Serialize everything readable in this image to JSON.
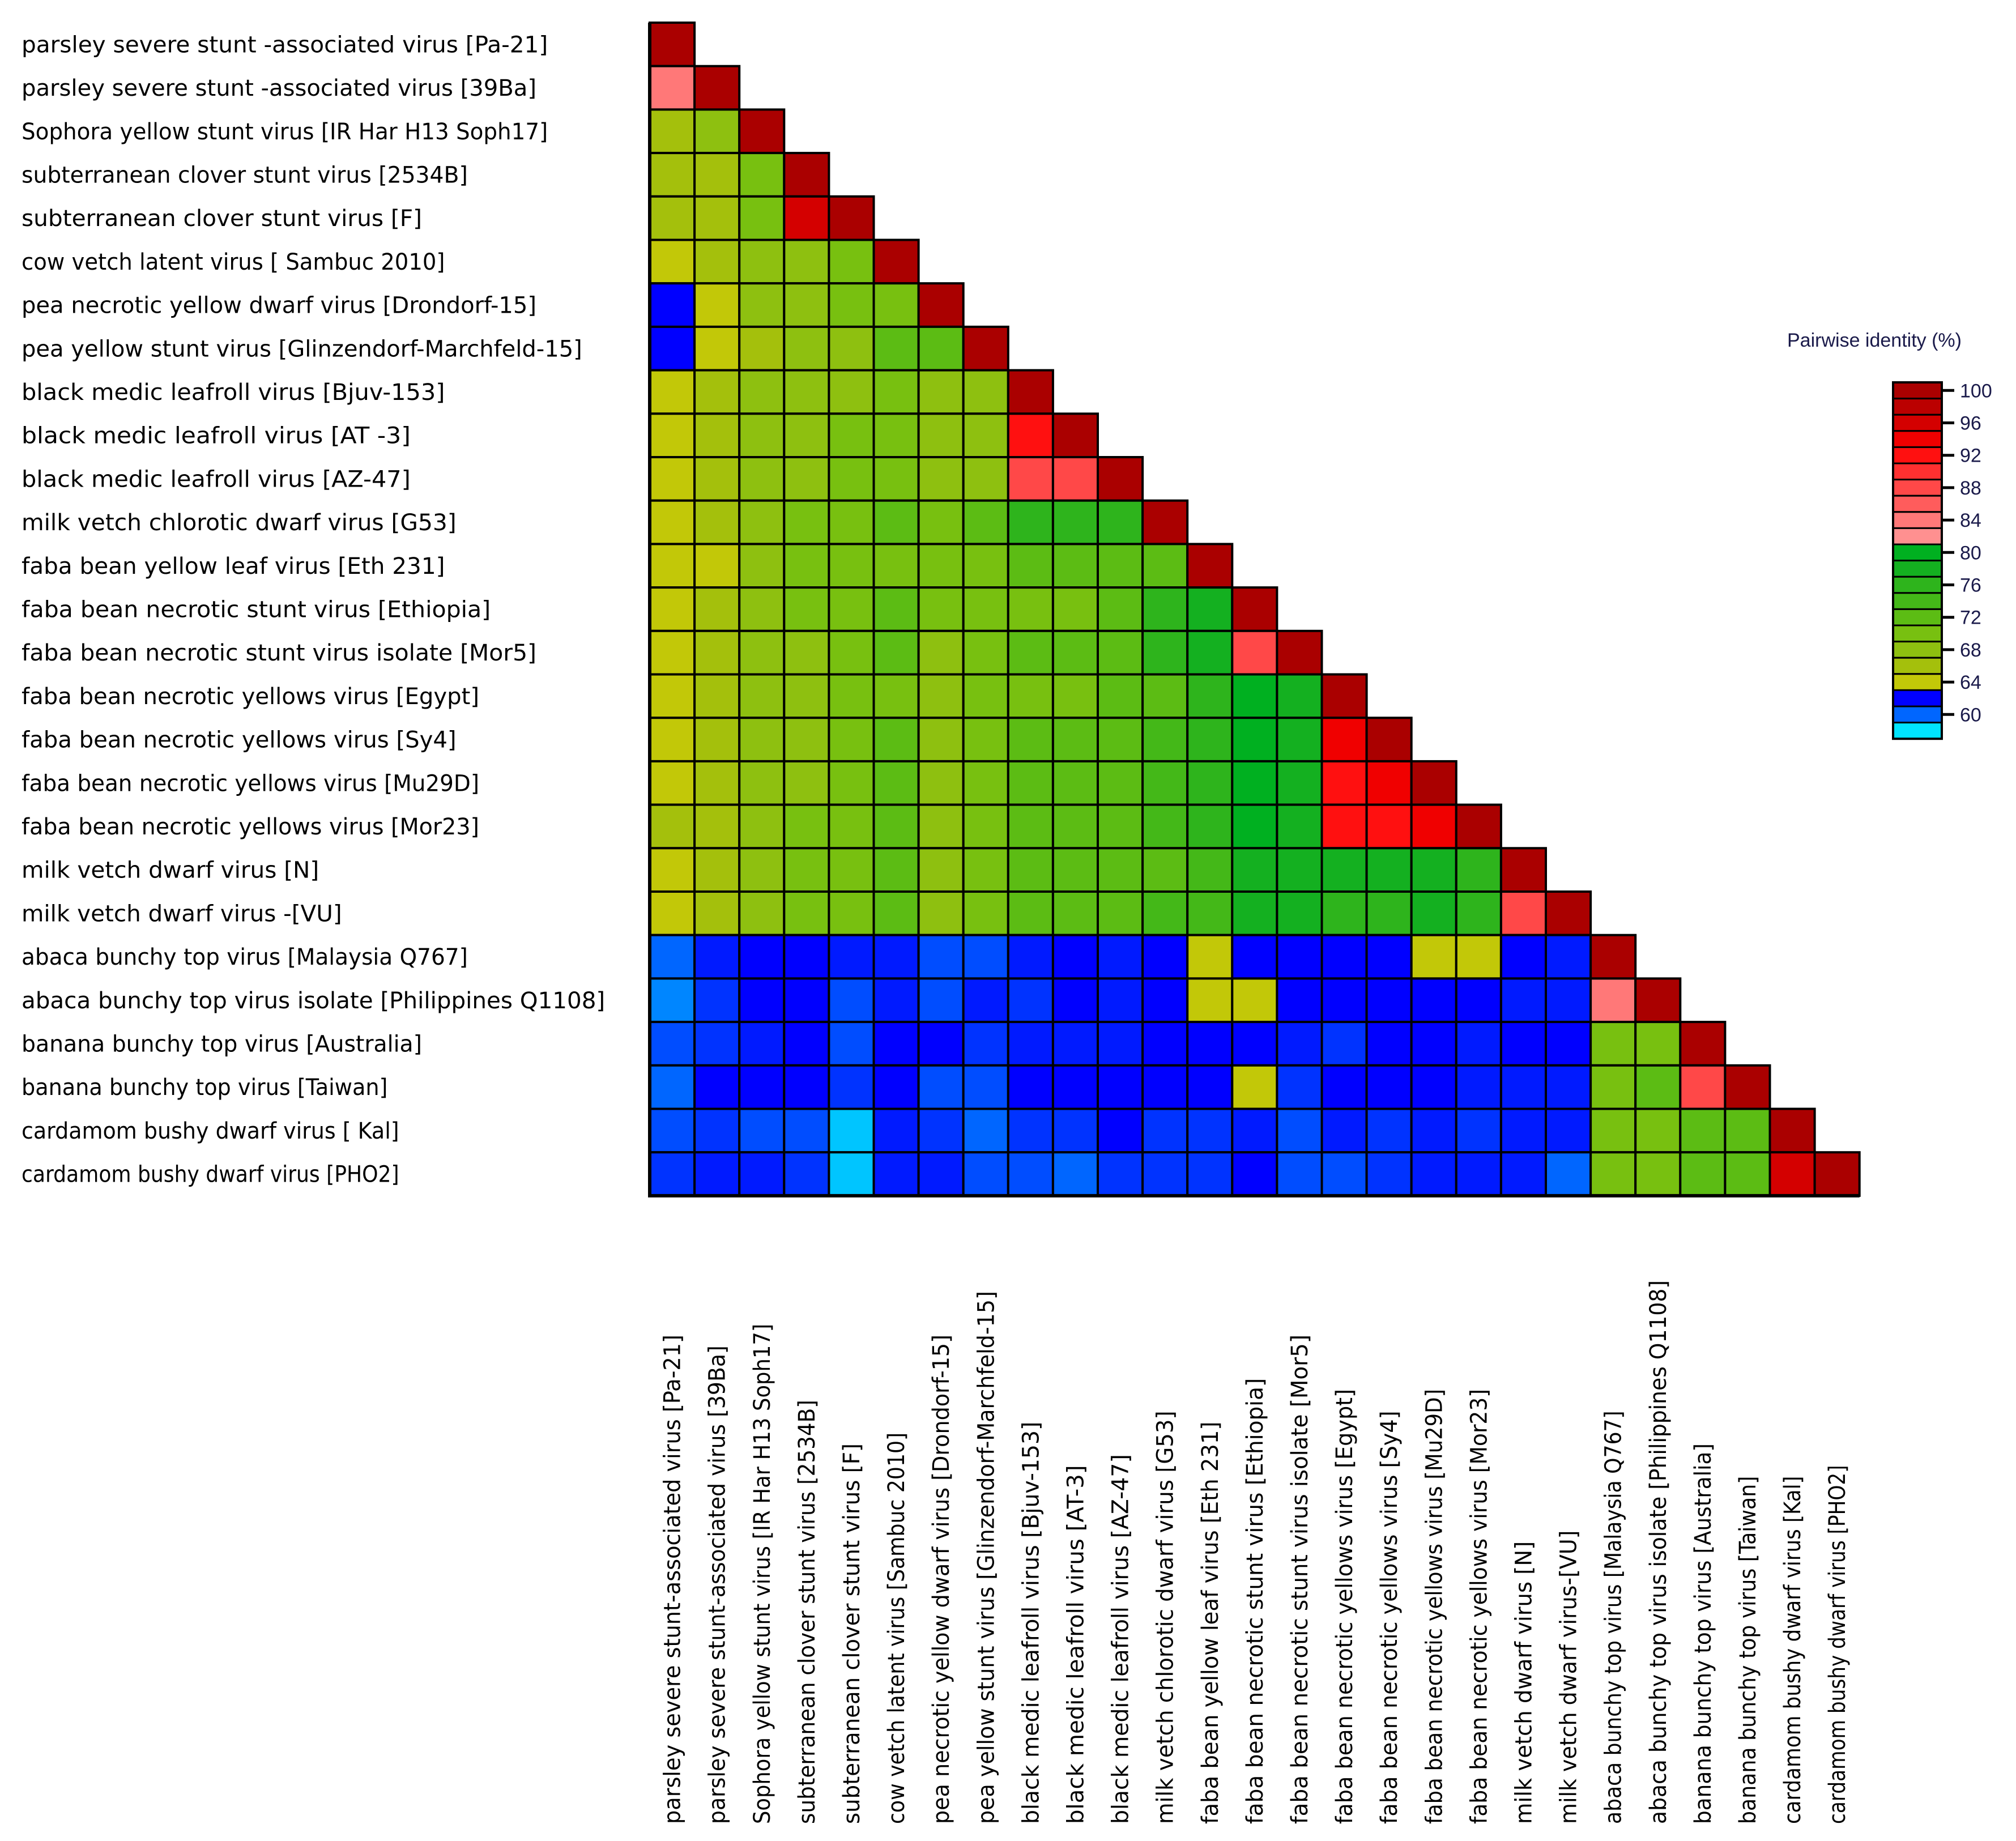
{
  "chart_data": {
    "type": "heatmap",
    "title": "",
    "subtitle": "",
    "xlabel": "",
    "ylabel": "",
    "matrix_shape": "lower-triangle",
    "row_labels": [
      "parsley severe stunt -associated virus [Pa-21]",
      "parsley severe stunt -associated virus [39Ba]",
      "Sophora yellow stunt virus [IR Har H13 Soph17]",
      "subterranean clover stunt virus [2534B]",
      "subterranean clover stunt virus [F]",
      "cow vetch latent virus [ Sambuc 2010]",
      "pea necrotic yellow dwarf virus [Drondorf-15]",
      "pea yellow stunt virus [Glinzendorf-Marchfeld-15]",
      "black medic leafroll virus [Bjuv-153]",
      "black medic leafroll virus [AT -3]",
      "black medic leafroll virus [AZ-47]",
      "milk vetch chlorotic dwarf virus [G53]",
      "faba bean yellow leaf virus [Eth 231]",
      "faba bean necrotic stunt virus [Ethiopia]",
      "faba bean necrotic stunt virus isolate [Mor5]",
      "faba bean necrotic yellows virus [Egypt]",
      "faba bean necrotic yellows virus [Sy4]",
      "faba bean necrotic yellows virus [Mu29D]",
      "faba bean necrotic yellows virus [Mor23]",
      "milk vetch dwarf virus [N]",
      "milk vetch dwarf virus -[VU]",
      "abaca bunchy top virus  [Malaysia Q767]",
      "abaca bunchy top virus isolate  [Philippines Q1108]",
      "banana bunchy top virus [Australia]",
      "banana bunchy top virus [Taiwan]",
      "cardamom bushy dwarf virus [ Kal]",
      "cardamom bushy dwarf virus [PHO2]"
    ],
    "col_labels": [
      "parsley severe stunt-associated virus [Pa-21]",
      "parsley severe stunt-associated virus [39Ba]",
      "Sophora yellow stunt virus [IR Har H13 Soph17]",
      "subterranean clover stunt virus [2534B]",
      "subterranean clover stunt virus [F]",
      "cow vetch latent virus [Sambuc 2010]",
      "pea necrotic yellow dwarf virus [Drondorf-15]",
      "pea yellow stunt virus [Glinzendorf-Marchfeld-15]",
      "black medic leafroll virus [Bjuv-153]",
      "black medic leafroll virus [AT-3]",
      "black medic leafroll virus [AZ-47]",
      "milk vetch chlorotic dwarf virus [G53]",
      "faba bean yellow leaf virus [Eth 231]",
      "faba bean necrotic stunt virus [Ethiopia]",
      "faba bean necrotic stunt virus isolate [Mor5]",
      "faba bean necrotic yellows virus [Egypt]",
      "faba bean necrotic yellows virus [Sy4]",
      "faba bean necrotic yellows virus [Mu29D]",
      "faba bean necrotic yellows virus [Mor23]",
      "milk vetch dwarf virus [N]",
      "milk vetch dwarf virus-[VU]",
      "abaca bunchy top virus [Malaysia Q767]",
      "abaca bunchy top virus isolate [Philippines Q1108]",
      "banana bunchy top virus [Australia]",
      "banana bunchy top virus [Taiwan]",
      "cardamom bushy dwarf virus [Kal]",
      "cardamom bushy dwarf virus [PHO2]"
    ],
    "values": [
      [
        100
      ],
      [
        83,
        100
      ],
      [
        65,
        67,
        100
      ],
      [
        65,
        66,
        69,
        100
      ],
      [
        65,
        66,
        70,
        96,
        100
      ],
      [
        64,
        66,
        67,
        68,
        69,
        100
      ],
      [
        62,
        64,
        67,
        68,
        69,
        70,
        100
      ],
      [
        62,
        64,
        66,
        67,
        67,
        71,
        72,
        100
      ],
      [
        64,
        65,
        67,
        68,
        68,
        70,
        68,
        68,
        100
      ],
      [
        64,
        65,
        67,
        68,
        69,
        70,
        67,
        68,
        92,
        100
      ],
      [
        64,
        65,
        67,
        68,
        69,
        70,
        68,
        68,
        88,
        87,
        100
      ],
      [
        64,
        66,
        68,
        69,
        70,
        71,
        69,
        71,
        75,
        75,
        75,
        100
      ],
      [
        64,
        64,
        67,
        69,
        70,
        70,
        69,
        70,
        71,
        71,
        71,
        72,
        100
      ],
      [
        64,
        65,
        68,
        69,
        69,
        71,
        69,
        70,
        70,
        70,
        72,
        75,
        77,
        100
      ],
      [
        64,
        65,
        68,
        68,
        69,
        71,
        68,
        70,
        71,
        71,
        71,
        75,
        77,
        88,
        100
      ],
      [
        64,
        65,
        68,
        68,
        69,
        70,
        68,
        70,
        70,
        70,
        71,
        72,
        76,
        79,
        77,
        100
      ],
      [
        64,
        65,
        67,
        68,
        69,
        71,
        68,
        70,
        71,
        71,
        71,
        74,
        76,
        79,
        77,
        94,
        100
      ],
      [
        64,
        65,
        67,
        68,
        69,
        71,
        67,
        70,
        71,
        71,
        71,
        73,
        75,
        79,
        77,
        91,
        93,
        100
      ],
      [
        65,
        65,
        68,
        69,
        70,
        71,
        67,
        70,
        71,
        71,
        71,
        73,
        75,
        79,
        78,
        91,
        91,
        94,
        100
      ],
      [
        64,
        65,
        67,
        69,
        70,
        71,
        67,
        70,
        71,
        71,
        71,
        72,
        74,
        77,
        77,
        77,
        77,
        77,
        76,
        100
      ],
      [
        64,
        65,
        67,
        69,
        70,
        71,
        67,
        70,
        71,
        71,
        71,
        73,
        74,
        77,
        77,
        76,
        76,
        77,
        76,
        88,
        100
      ],
      [
        60,
        61.5,
        62.5,
        62.5,
        61.5,
        61.5,
        60.5,
        60.5,
        61.5,
        62.5,
        61.5,
        62,
        64,
        62,
        62,
        62.5,
        62.5,
        63,
        64,
        62.5,
        61.5,
        100
      ],
      [
        59.5,
        61,
        62.5,
        62.5,
        60.5,
        61.5,
        60.5,
        61.5,
        61,
        62,
        61.5,
        62,
        64,
        63,
        62,
        62,
        62,
        62.5,
        62,
        61.5,
        61.5,
        83,
        100
      ],
      [
        60.5,
        61,
        61.5,
        62.5,
        60.5,
        62.5,
        62.5,
        61,
        61.5,
        61.5,
        61.5,
        62.5,
        62,
        62.5,
        61.5,
        61,
        62.5,
        62,
        61.5,
        62.5,
        62,
        70,
        70,
        100
      ],
      [
        60,
        62.5,
        62,
        62.5,
        61,
        62.5,
        60.5,
        60.5,
        62,
        62.5,
        62.5,
        62,
        62.5,
        64,
        61,
        62,
        62.5,
        62,
        61.5,
        61.5,
        61.5,
        70,
        71,
        87,
        100
      ],
      [
        60.5,
        61,
        60.5,
        60.5,
        58.5,
        61.5,
        61,
        60,
        61,
        61,
        62,
        61,
        61,
        61.5,
        60.5,
        61.5,
        61,
        61.5,
        61,
        61.5,
        61.5,
        70,
        70,
        71,
        72,
        100
      ],
      [
        61,
        61.5,
        61.5,
        61,
        58.5,
        61.5,
        61.5,
        60.5,
        60.5,
        60,
        61,
        61,
        61,
        62.5,
        60.5,
        60.5,
        61,
        61.5,
        61.5,
        61.5,
        60,
        70,
        70,
        71,
        71,
        96,
        100
      ]
    ],
    "value_range": [
      58,
      100
    ],
    "grid": true,
    "legend": {
      "title": "Pairwise identity (%)",
      "placement": "right",
      "ticks": [
        100,
        96,
        92,
        88,
        84,
        80,
        76,
        72,
        68,
        64,
        60
      ],
      "bins": [
        {
          "value": 100,
          "color": "#aa0000"
        },
        {
          "value": 98,
          "color": "#bb0000"
        },
        {
          "value": 96,
          "color": "#d40000"
        },
        {
          "value": 94,
          "color": "#f00000"
        },
        {
          "value": 92,
          "color": "#ff1010"
        },
        {
          "value": 90,
          "color": "#ff3030"
        },
        {
          "value": 88,
          "color": "#ff4848"
        },
        {
          "value": 86,
          "color": "#ff5c5c"
        },
        {
          "value": 84,
          "color": "#ff7878"
        },
        {
          "value": 82,
          "color": "#ff9090"
        },
        {
          "value": 80,
          "color": "#00b020"
        },
        {
          "value": 78,
          "color": "#14b020"
        },
        {
          "value": 76,
          "color": "#2eb41c"
        },
        {
          "value": 74,
          "color": "#44b818"
        },
        {
          "value": 72,
          "color": "#5cbc14"
        },
        {
          "value": 70,
          "color": "#78c010"
        },
        {
          "value": 68,
          "color": "#8ec010"
        },
        {
          "value": 66,
          "color": "#a4c00c"
        },
        {
          "value": 64,
          "color": "#c2c808"
        },
        {
          "value": 62,
          "color": "#0000ff"
        },
        {
          "value": 60,
          "color": "#0066ff"
        },
        {
          "value": 58,
          "color": "#00e4ff"
        }
      ]
    }
  }
}
